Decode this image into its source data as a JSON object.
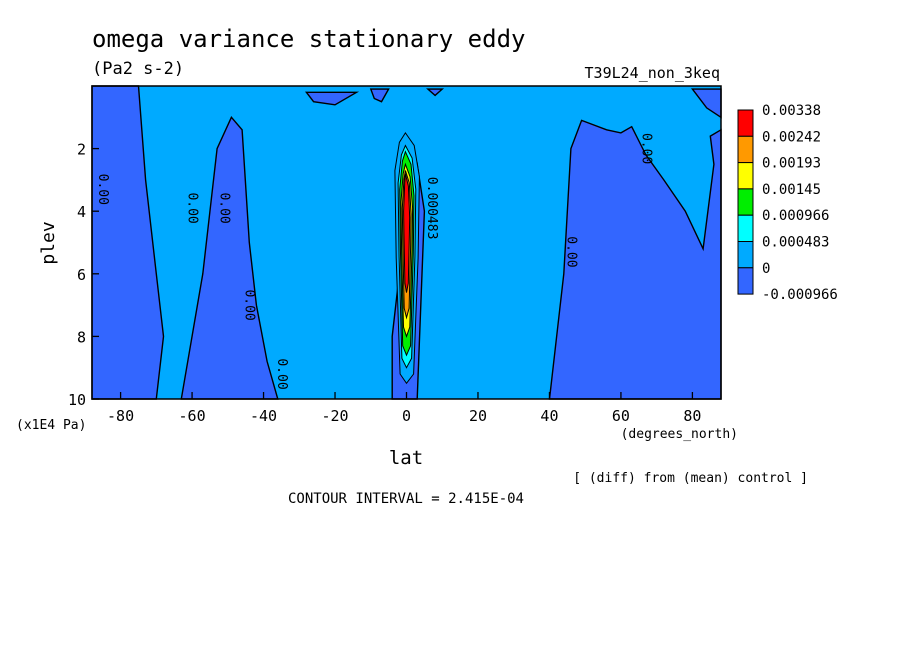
{
  "chart_data": {
    "type": "heatmap",
    "subtype": "filled-contour",
    "title": "omega variance stationary eddy",
    "units": "(Pa2 s-2)",
    "run_label": "T39L24_non_3keq",
    "xlabel": "lat",
    "x_units": "(degrees_north)",
    "ylabel": "plev",
    "y_units": "(x1E4 Pa)",
    "xlim": [
      -88,
      88
    ],
    "ylim": [
      10,
      0
    ],
    "x_ticks": [
      -80,
      -60,
      -40,
      -20,
      0,
      20,
      40,
      60,
      80
    ],
    "y_ticks": [
      2,
      4,
      6,
      8,
      10
    ],
    "contour_interval_text": "CONTOUR INTERVAL = 2.415E-04",
    "note": "[ (diff) from (mean) control ]",
    "legend": {
      "placement": "right",
      "labels": [
        "0.00338",
        "0.00242",
        "0.00193",
        "0.00145",
        "0.000966",
        "0.000483",
        "0",
        "-0.000966"
      ],
      "colors": [
        "#ff0000",
        "#ff9900",
        "#ffff00",
        "#00ee00",
        "#00ffff",
        "#00aaff",
        "#3366ff"
      ]
    },
    "colors": {
      "background_level": "#00aaff",
      "negative_level": "#3366ff"
    },
    "contour_labels": [
      {
        "lat": -86,
        "plev": 3.3,
        "text": "0.00"
      },
      {
        "lat": -61,
        "plev": 3.9,
        "text": "0.00"
      },
      {
        "lat": -52,
        "plev": 3.9,
        "text": "0.00"
      },
      {
        "lat": -45,
        "plev": 7.0,
        "text": "0.00"
      },
      {
        "lat": -36,
        "plev": 9.2,
        "text": "0.00"
      },
      {
        "lat": 6,
        "plev": 3.9,
        "text": "0.000483"
      },
      {
        "lat": 45,
        "plev": 5.3,
        "text": "0.00"
      },
      {
        "lat": 66,
        "plev": 2.0,
        "text": "0.00"
      }
    ]
  }
}
